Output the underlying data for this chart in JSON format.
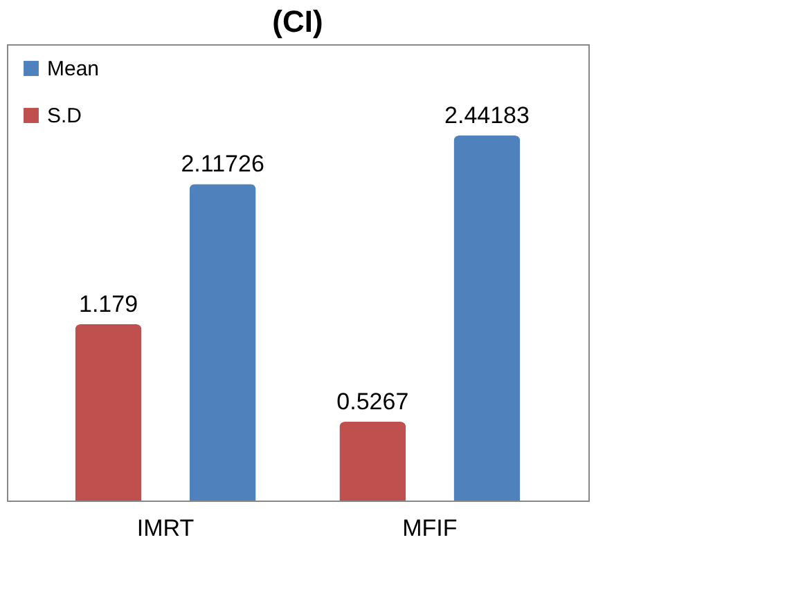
{
  "chart_data": {
    "type": "bar",
    "title": "(CI)",
    "categories": [
      "IMRT",
      "MFIF"
    ],
    "series": [
      {
        "name": "S.D",
        "color": "#c0504d",
        "values": [
          1.179,
          0.5267
        ]
      },
      {
        "name": "Mean",
        "color": "#4f81bd",
        "values": [
          2.11726,
          2.44183
        ]
      }
    ],
    "data_labels": true,
    "legend": "top left"
  }
}
